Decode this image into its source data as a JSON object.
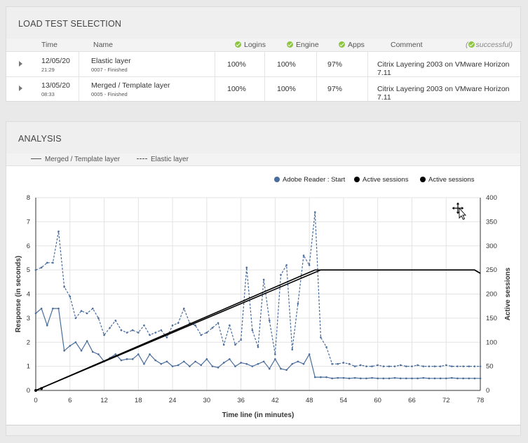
{
  "selection": {
    "title": "LOAD TEST SELECTION",
    "headers": {
      "time": "Time",
      "name": "Name",
      "logins": "Logins",
      "engine": "Engine",
      "apps": "Apps",
      "comment": "Comment",
      "status": "successful)"
    },
    "rows": [
      {
        "date": "12/05/20",
        "time": "21:29",
        "name": "Elastic layer",
        "sub": "0007 - Finished",
        "logins": "100%",
        "engine": "100%",
        "apps": "97%",
        "comment": "Citrix Layering 2003 on VMware Horizon 7.11"
      },
      {
        "date": "13/05/20",
        "time": "08:33",
        "name": "Merged / Template layer",
        "sub": "0005 - Finished",
        "logins": "100%",
        "engine": "100%",
        "apps": "97%",
        "comment": "Citrix Layering 2003 on VMware Horizon 7.11"
      }
    ]
  },
  "analysis": {
    "title": "ANALYSIS",
    "legend": {
      "solid": "Merged / Template layer",
      "dashed": "Elastic layer"
    },
    "chart_legend": [
      {
        "label": "Adobe Reader : Start",
        "color": "#4a6d9c"
      },
      {
        "label": "Active sessions",
        "color": "#000000"
      },
      {
        "label": "Active sessions",
        "color": "#000000"
      }
    ]
  },
  "colors": {
    "accent_check": "#8cc63f",
    "series_blue": "#4a6d9c",
    "sessions": "#000000"
  },
  "chart_data": {
    "type": "line",
    "xlabel": "Time line (in minutes)",
    "ylabel": "Response (in seconds)",
    "y2label": "Active sessions",
    "xlim": [
      0,
      78
    ],
    "ylim": [
      0,
      8
    ],
    "y2lim": [
      0,
      400
    ],
    "xticks": [
      "0",
      "6",
      "12",
      "18",
      "24",
      "30",
      "36",
      "42",
      "48",
      "54",
      "60",
      "66",
      "72",
      "78"
    ],
    "yticks": [
      "0",
      "1",
      "2",
      "3",
      "4",
      "5",
      "6",
      "7",
      "8"
    ],
    "y2ticks": [
      "0",
      "50",
      "100",
      "150",
      "200",
      "250",
      "300",
      "350",
      "400"
    ],
    "grid": true,
    "series": [
      {
        "name": "Adobe Reader : Start",
        "style": "dashed",
        "axis": "left",
        "x": [
          0,
          1,
          2,
          3,
          4,
          5,
          6,
          7,
          8,
          9,
          10,
          11,
          12,
          13,
          14,
          15,
          16,
          17,
          18,
          19,
          20,
          21,
          22,
          23,
          24,
          25,
          26,
          27,
          28,
          29,
          30,
          31,
          32,
          33,
          34,
          35,
          36,
          37,
          38,
          39,
          40,
          41,
          42,
          43,
          44,
          45,
          46,
          47,
          48,
          49,
          50,
          51,
          52,
          53,
          54,
          55,
          56,
          57,
          58,
          59,
          60,
          61,
          62,
          63,
          64,
          65,
          66,
          67,
          68,
          69,
          70,
          71,
          72,
          73,
          74,
          75,
          76,
          77,
          78
        ],
        "y": [
          5.0,
          5.1,
          5.3,
          5.3,
          6.6,
          4.3,
          3.9,
          3.0,
          3.3,
          3.2,
          3.4,
          3.0,
          2.3,
          2.6,
          2.9,
          2.5,
          2.4,
          2.5,
          2.4,
          2.7,
          2.3,
          2.4,
          2.5,
          2.2,
          2.7,
          2.8,
          3.4,
          2.8,
          2.7,
          2.3,
          2.4,
          2.6,
          2.8,
          1.9,
          2.7,
          1.9,
          2.1,
          5.1,
          2.5,
          1.8,
          4.6,
          2.9,
          1.5,
          4.8,
          5.2,
          1.7,
          3.6,
          5.6,
          5.2,
          7.4,
          2.2,
          1.8,
          1.1,
          1.1,
          1.15,
          1.1,
          1.0,
          1.05,
          1.0,
          1.0,
          1.05,
          1.0,
          1.0,
          1.0,
          1.05,
          1.0,
          1.0,
          1.05,
          1.0,
          1.0,
          1.0,
          1.0,
          1.05,
          1.0,
          1.0,
          1.0,
          1.0,
          1.0,
          1.0
        ]
      },
      {
        "name": "Adobe Reader : Start",
        "style": "solid",
        "axis": "left",
        "x": [
          0,
          1,
          2,
          3,
          4,
          5,
          6,
          7,
          8,
          9,
          10,
          11,
          12,
          13,
          14,
          15,
          16,
          17,
          18,
          19,
          20,
          21,
          22,
          23,
          24,
          25,
          26,
          27,
          28,
          29,
          30,
          31,
          32,
          33,
          34,
          35,
          36,
          37,
          38,
          39,
          40,
          41,
          42,
          43,
          44,
          45,
          46,
          47,
          48,
          49,
          50,
          51,
          52,
          53,
          54,
          55,
          56,
          57,
          58,
          59,
          60,
          61,
          62,
          63,
          64,
          65,
          66,
          67,
          68,
          69,
          70,
          71,
          72,
          73,
          74,
          75,
          76,
          77,
          78
        ],
        "y": [
          3.2,
          3.4,
          2.7,
          3.4,
          3.4,
          1.65,
          1.85,
          2.0,
          1.65,
          2.05,
          1.6,
          1.5,
          1.2,
          1.35,
          1.5,
          1.25,
          1.3,
          1.3,
          1.5,
          1.1,
          1.5,
          1.25,
          1.1,
          1.2,
          1.0,
          1.05,
          1.2,
          1.0,
          1.2,
          1.05,
          1.3,
          1.0,
          0.95,
          1.15,
          1.3,
          1.0,
          1.15,
          1.1,
          1.0,
          1.1,
          1.2,
          0.9,
          1.3,
          0.9,
          0.85,
          1.1,
          1.2,
          1.1,
          1.5,
          0.55,
          0.55,
          0.55,
          0.5,
          0.52,
          0.52,
          0.5,
          0.52,
          0.5,
          0.5,
          0.52,
          0.5,
          0.5,
          0.5,
          0.52,
          0.5,
          0.5,
          0.5,
          0.5,
          0.52,
          0.5,
          0.5,
          0.5,
          0.5,
          0.52,
          0.5,
          0.5,
          0.5,
          0.5,
          0.5
        ]
      },
      {
        "name": "Active sessions",
        "style": "solid",
        "axis": "right",
        "x": [
          0,
          48,
          50,
          77,
          78
        ],
        "y": [
          0,
          240,
          250,
          250,
          243
        ]
      },
      {
        "name": "Active sessions",
        "style": "solid",
        "axis": "right",
        "x": [
          0,
          47,
          49,
          77,
          78
        ],
        "y": [
          0,
          240,
          250,
          250,
          243
        ]
      }
    ]
  }
}
